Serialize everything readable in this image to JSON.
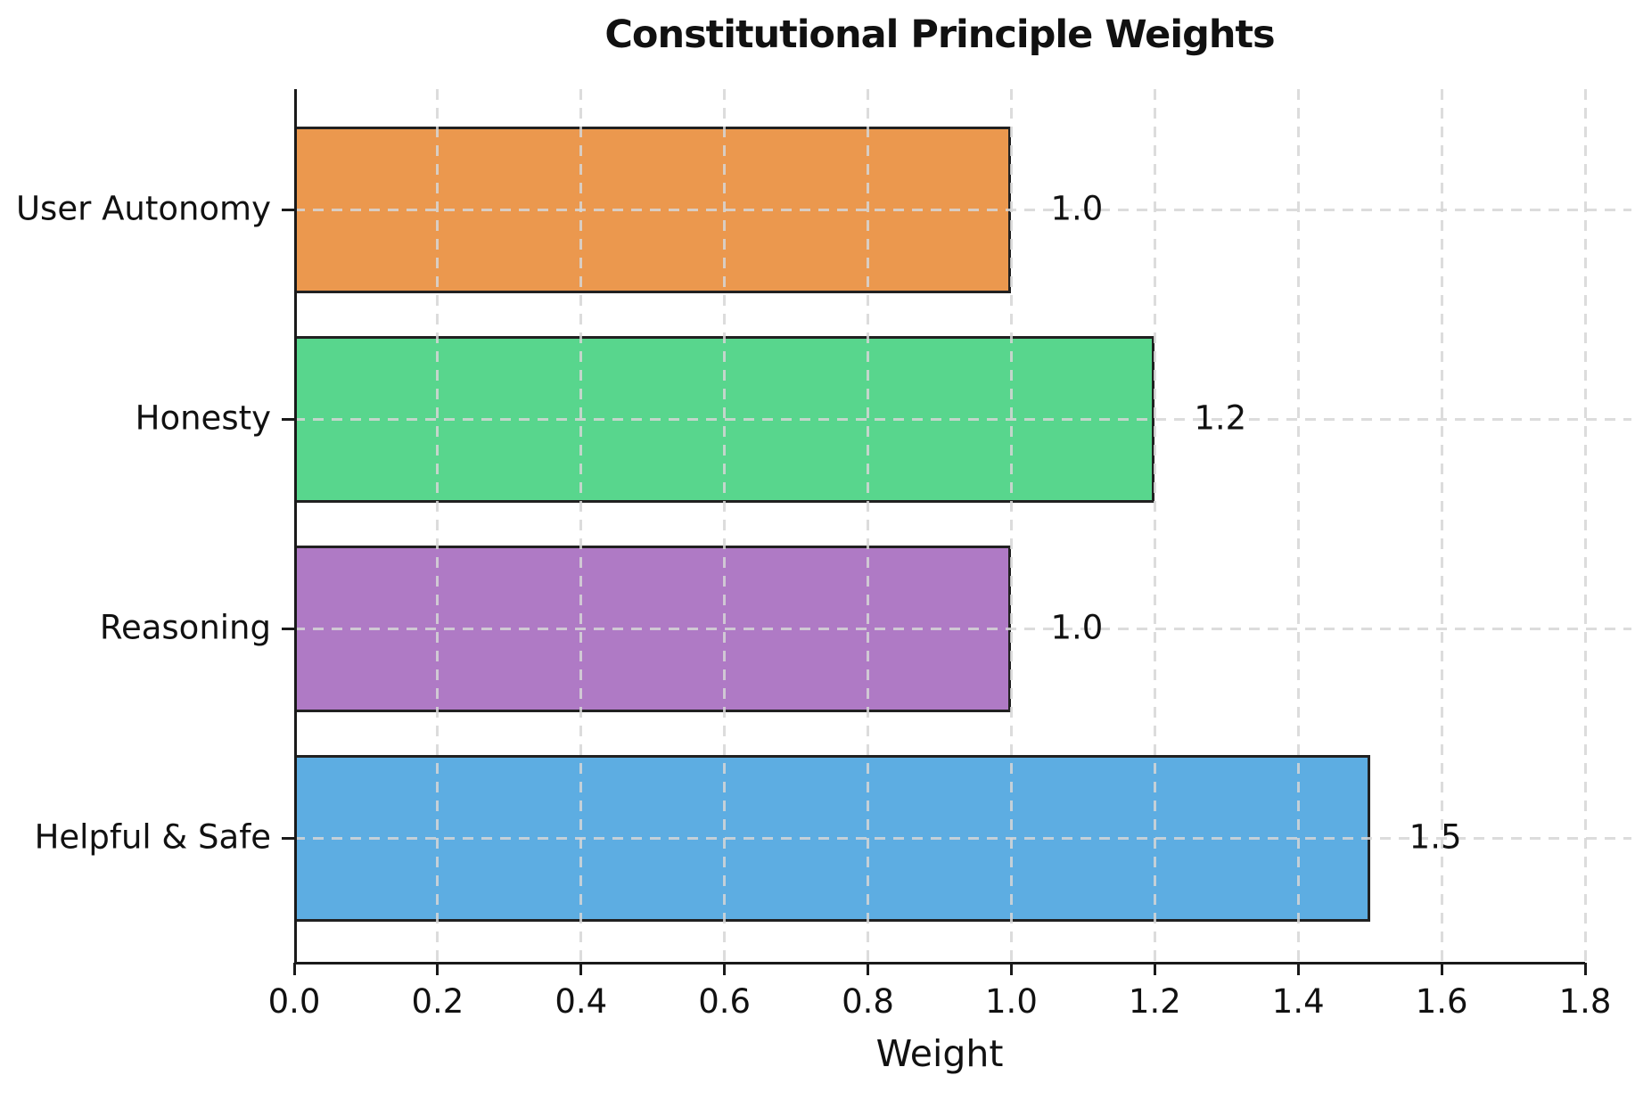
{
  "figure": {
    "background": "#FFFFFF"
  },
  "chart_data": {
    "type": "bar",
    "orientation": "horizontal",
    "title": "Constitutional Principle Weights",
    "xlabel": "Weight",
    "ylabel": "",
    "categories": [
      "User Autonomy",
      "Honesty",
      "Reasoning",
      "Helpful & Safe"
    ],
    "values": [
      1.0,
      1.2,
      1.0,
      1.5
    ],
    "value_labels": [
      "1.0",
      "1.2",
      "1.0",
      "1.5"
    ],
    "bar_colors": [
      "#EB984E",
      "#58D68D",
      "#AF7AC5",
      "#5DADE2"
    ],
    "bar_edge_color": "#212121",
    "xlim": [
      0.0,
      1.8
    ],
    "xticks": [
      0.0,
      0.2,
      0.4,
      0.6,
      0.8,
      1.0,
      1.2,
      1.4,
      1.6,
      1.8
    ],
    "xtick_labels": [
      "0.0",
      "0.2",
      "0.4",
      "0.6",
      "0.8",
      "1.0",
      "1.2",
      "1.4",
      "1.6",
      "1.8"
    ],
    "grid": "dashed",
    "grid_color": "#D6D6D6",
    "axis_color": "#1A1A1A",
    "legend_position": "none"
  }
}
